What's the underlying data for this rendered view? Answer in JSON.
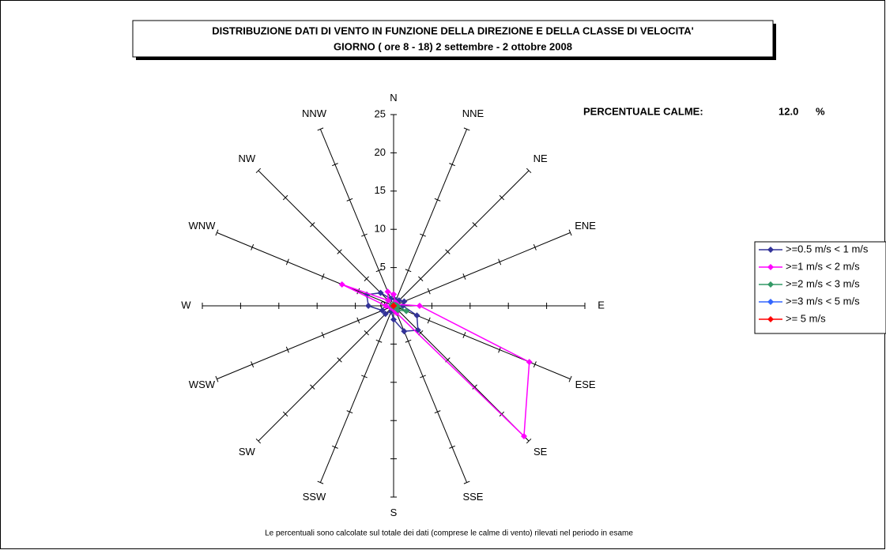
{
  "chart_data": {
    "type": "radar",
    "title": "DISTRIBUZIONE DATI DI VENTO IN FUNZIONE DELLA DIREZIONE E DELLA CLASSE DI VELOCITA'",
    "subtitle": "GIORNO ( ore 8 - 18)  2 settembre - 2 ottobre 2008",
    "calm_label": "PERCENTUALE CALME:",
    "calm_value": "12.0",
    "calm_unit": "%",
    "note": "Le percentuali sono calcolate sul totale dei dati (comprese le calme di vento) rilevati nel periodo in esame",
    "categories": [
      "N",
      "NNE",
      "NE",
      "ENE",
      "E",
      "ESE",
      "SE",
      "SSE",
      "S",
      "SSW",
      "SW",
      "WSW",
      "W",
      "WNW",
      "NW",
      "NNW"
    ],
    "rlim": [
      0,
      25
    ],
    "rticks": [
      0,
      5,
      10,
      15,
      20,
      25
    ],
    "series": [
      {
        "name": ">=0.5 m/s < 1 m/s",
        "color": "#333399",
        "values": [
          1.5,
          0.8,
          1.0,
          1.5,
          1.2,
          3.3,
          4.5,
          3.6,
          1.8,
          0.8,
          1.5,
          1.6,
          3.3,
          3.8,
          2.4,
          1.0
        ]
      },
      {
        "name": ">=1 m/s < 2 m/s",
        "color": "#ff00ff",
        "values": [
          1.5,
          0.5,
          0.5,
          0.5,
          3.4,
          19.2,
          24.1,
          1.0,
          0.5,
          0.3,
          0.3,
          0.5,
          1.0,
          7.3,
          1.0,
          2.0
        ]
      },
      {
        "name": ">=2 m/s < 3 m/s",
        "color": "#339966",
        "values": [
          0.2,
          0,
          0,
          0.3,
          0.5,
          1.8,
          0.8,
          0.2,
          0,
          0,
          0,
          0,
          0.2,
          0.2,
          0,
          0.1
        ]
      },
      {
        "name": ">=3 m/s < 5 m/s",
        "color": "#3366ff",
        "values": [
          0,
          0,
          0,
          0,
          0,
          0,
          0,
          0,
          0,
          0,
          0,
          0,
          0,
          0,
          0,
          0
        ]
      },
      {
        "name": ">= 5 m/s",
        "color": "#ff0000",
        "values": [
          0,
          0,
          0,
          0,
          0,
          0,
          0,
          0,
          0,
          0,
          0,
          0,
          0,
          0,
          0,
          0
        ]
      }
    ]
  }
}
